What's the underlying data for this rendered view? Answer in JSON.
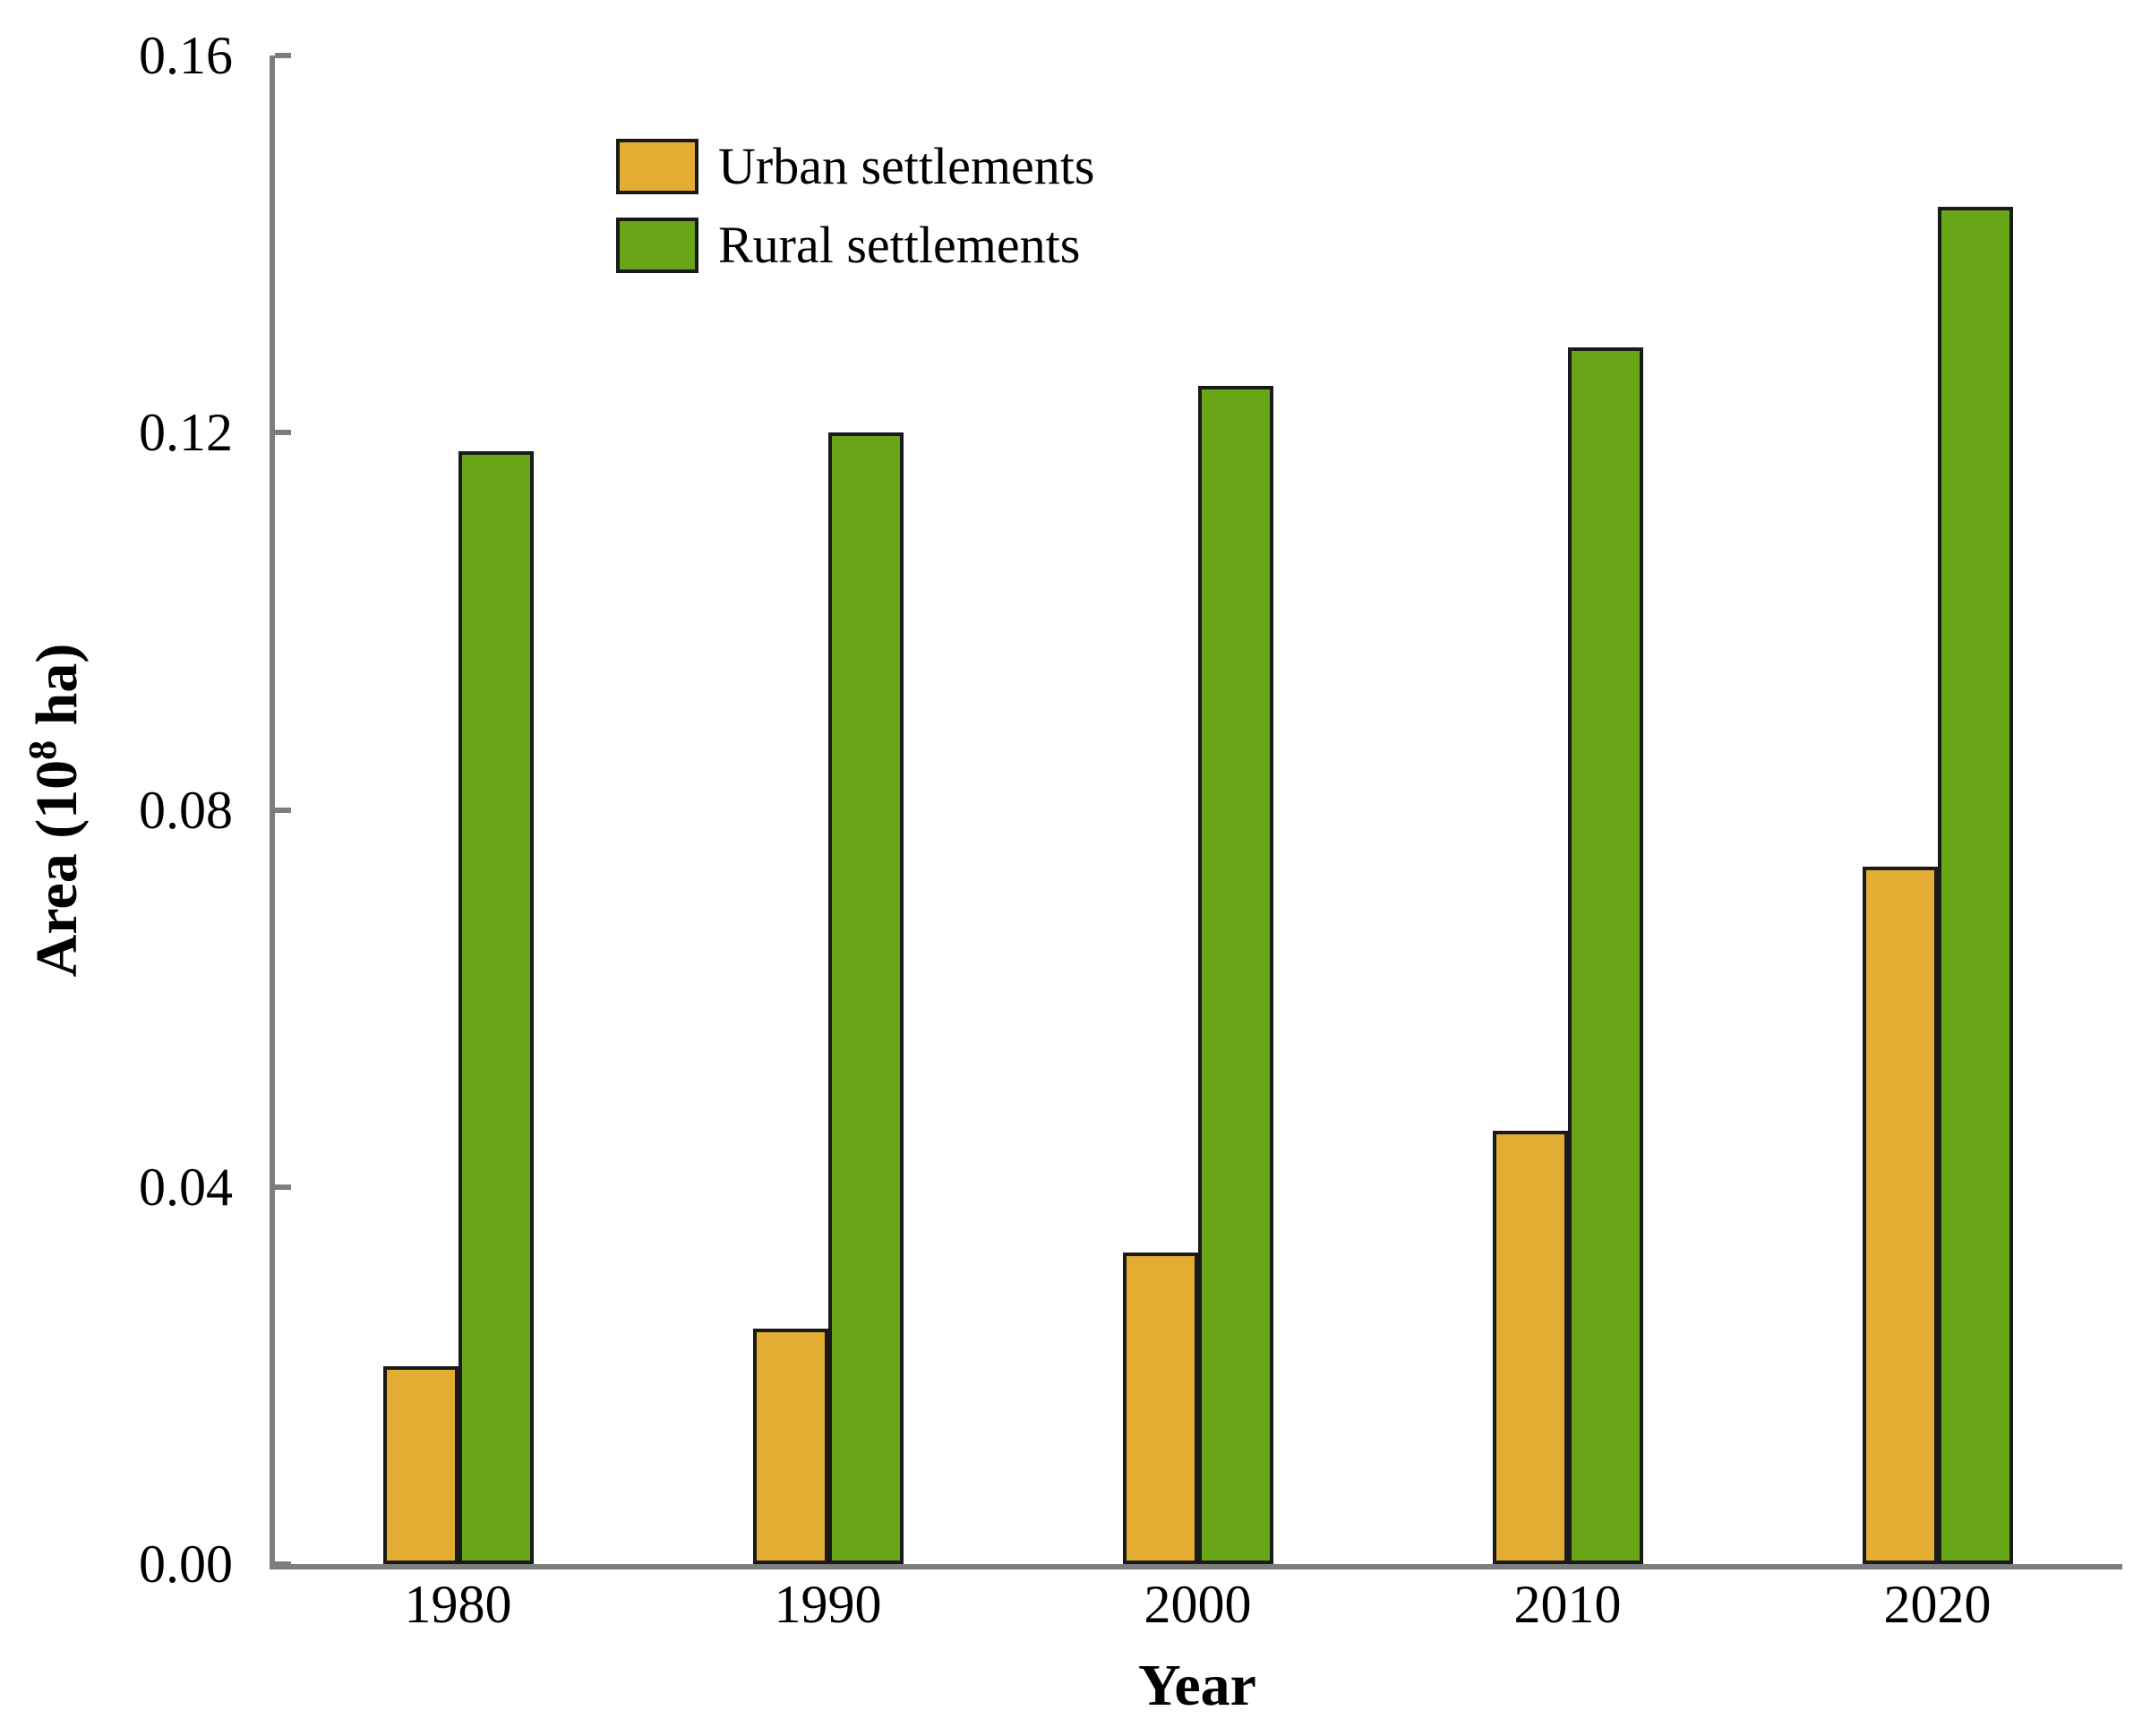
{
  "chart_data": {
    "type": "bar",
    "title": "",
    "xlabel": "Year",
    "ylabel_parts": {
      "pre": "Area (10",
      "sup": "8",
      "post": " ha)"
    },
    "categories": [
      "1980",
      "1990",
      "2000",
      "2010",
      "2020"
    ],
    "series": [
      {
        "name": "Urban settlements",
        "color": "#E3AC33",
        "values": [
          0.021,
          0.025,
          0.033,
          0.046,
          0.074
        ]
      },
      {
        "name": "Rural settlements",
        "color": "#69A617",
        "values": [
          0.118,
          0.12,
          0.125,
          0.129,
          0.144
        ]
      }
    ],
    "y_ticks": [
      0.0,
      0.04,
      0.08,
      0.12,
      0.16
    ],
    "y_tick_labels": [
      "0.00",
      "0.04",
      "0.08",
      "0.12",
      "0.16"
    ],
    "ylim": [
      0,
      0.16
    ],
    "grid": false,
    "legend_position": "top-left",
    "bar_edge_color": "#1a1a1a",
    "axis_color": "#7d7d7d"
  }
}
